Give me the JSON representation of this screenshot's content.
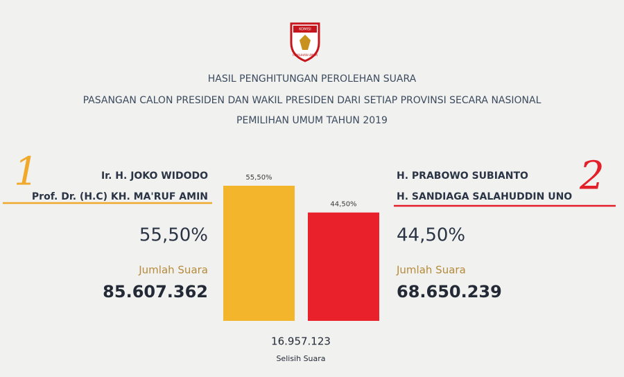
{
  "header": {
    "logo_text": [
      "KOMISI",
      "PEMILIHAN UMUM"
    ],
    "title_lines": [
      "HASIL PENGHITUNGAN PEROLEHAN SUARA",
      "PASANGAN CALON PRESIDEN DAN WAKIL PRESIDEN DARI SETIAP PROVINSI SECARA NASIONAL",
      "PEMILIHAN UMUM TAHUN 2019"
    ]
  },
  "candidates": [
    {
      "number": "1",
      "names": [
        "Ir. H. JOKO WIDODO",
        "Prof. Dr. (H.C) KH. MA'RUF AMIN"
      ],
      "votes_label": "Jumlah Suara",
      "votes": "85.607.362"
    },
    {
      "number": "2",
      "names": [
        "H. PRABOWO SUBIANTO",
        "H. SANDIAGA SALAHUDDIN UNO"
      ],
      "votes_label": "Jumlah Suara",
      "votes": "68.650.239"
    }
  ],
  "difference": {
    "value": "16.957.123",
    "label": "Selisih Suara"
  },
  "chart_data": {
    "type": "bar",
    "values": [
      55.5,
      44.5
    ],
    "value_labels": [
      "55,50%",
      "44,50%"
    ],
    "colors": [
      "#f2b52c",
      "#e8212b"
    ]
  }
}
